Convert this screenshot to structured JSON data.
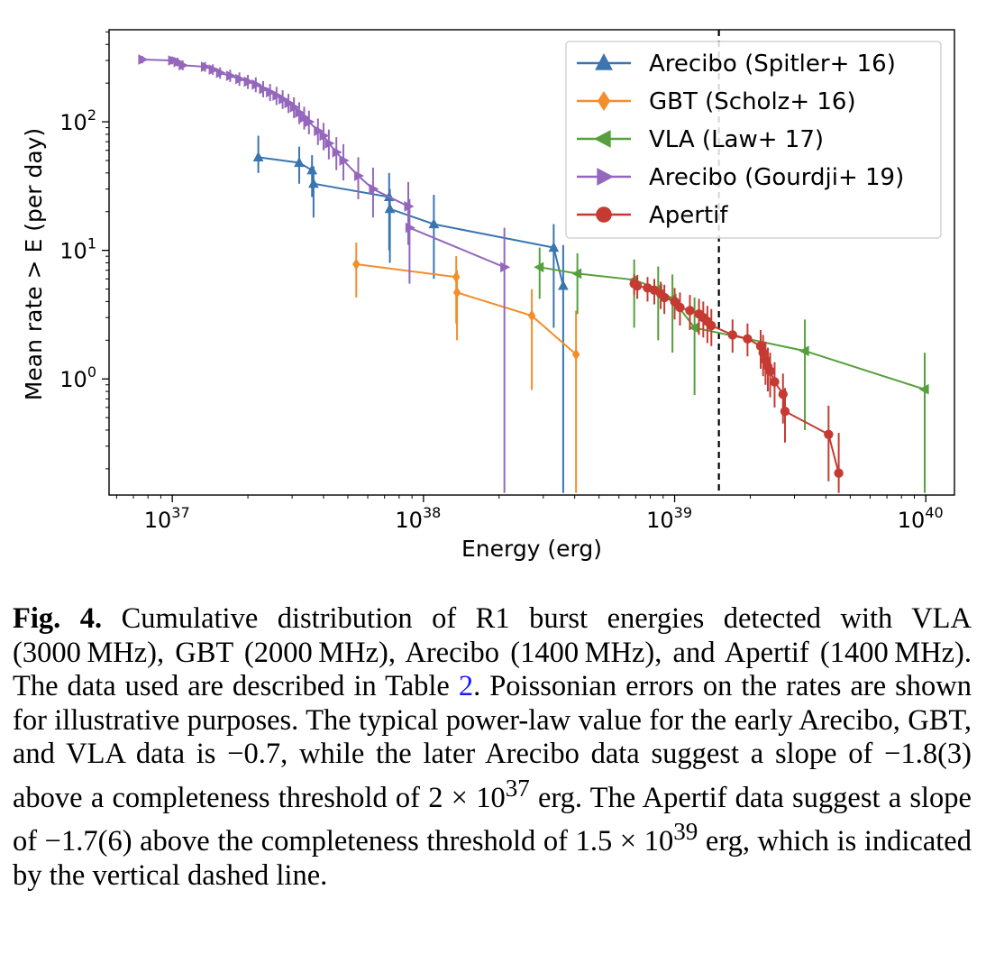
{
  "chart_data": {
    "type": "scatter",
    "title": "",
    "xlabel": "Energy (erg)",
    "ylabel": "Mean rate > E (per day)",
    "xscale": "log",
    "yscale": "log",
    "xlim": [
      5.6e+36,
      1.3e+40
    ],
    "ylim": [
      0.125,
      520
    ],
    "x_ticks": [
      {
        "value": 1e+37,
        "base": "10",
        "exp": "37"
      },
      {
        "value": 1e+38,
        "base": "10",
        "exp": "38"
      },
      {
        "value": 1e+39,
        "base": "10",
        "exp": "39"
      },
      {
        "value": 1e+40,
        "base": "10",
        "exp": "40"
      }
    ],
    "y_ticks": [
      {
        "value": 1,
        "base": "10",
        "exp": "0"
      },
      {
        "value": 10,
        "base": "10",
        "exp": "1"
      },
      {
        "value": 100,
        "base": "10",
        "exp": "2"
      }
    ],
    "grid": false,
    "legend_position": "top-right",
    "threshold_line": {
      "x": 1.5e+39,
      "style": "dashed",
      "color": "#000000"
    },
    "series": [
      {
        "name": "Arecibo (Spitler+ 16)",
        "color": "#3a75b0",
        "marker": "triangle-up",
        "points": [
          {
            "x": 2.2e+37,
            "y": 53,
            "lo": 40,
            "hi": 78
          },
          {
            "x": 3.2e+37,
            "y": 48,
            "lo": 33,
            "hi": 64
          },
          {
            "x": 3.6e+37,
            "y": 42,
            "lo": 26,
            "hi": 55
          },
          {
            "x": 3.65e+37,
            "y": 33,
            "lo": 18,
            "hi": 45
          },
          {
            "x": 7.3e+37,
            "y": 26,
            "lo": 10,
            "hi": 40
          },
          {
            "x": 7.35e+37,
            "y": 21,
            "lo": 8,
            "hi": 30
          },
          {
            "x": 1.1e+38,
            "y": 16,
            "lo": 6,
            "hi": 27
          },
          {
            "x": 3.3e+38,
            "y": 10.5,
            "lo": 2.5,
            "hi": 16
          },
          {
            "x": 3.6e+38,
            "y": 5.3,
            "lo": 0.13,
            "hi": 11
          }
        ]
      },
      {
        "name": "GBT (Scholz+ 16)",
        "color": "#f28e2b",
        "marker": "diamond",
        "points": [
          {
            "x": 5.4e+37,
            "y": 7.8,
            "lo": 4.3,
            "hi": 11.5
          },
          {
            "x": 1.35e+38,
            "y": 6.2,
            "lo": 2.7,
            "hi": 9
          },
          {
            "x": 1.36e+38,
            "y": 4.7,
            "lo": 2.0,
            "hi": 7
          },
          {
            "x": 2.7e+38,
            "y": 3.1,
            "lo": 0.82,
            "hi": 5
          },
          {
            "x": 4.05e+38,
            "y": 1.55,
            "lo": 0.13,
            "hi": 3.4
          }
        ]
      },
      {
        "name": "VLA (Law+ 17)",
        "color": "#55a03c",
        "marker": "triangle-left",
        "points": [
          {
            "x": 2.9e+38,
            "y": 7.4,
            "lo": 4.2,
            "hi": 10.5
          },
          {
            "x": 4.1e+38,
            "y": 6.6,
            "lo": 3.2,
            "hi": 9.5
          },
          {
            "x": 6.9e+38,
            "y": 5.9,
            "lo": 2.5,
            "hi": 8.5
          },
          {
            "x": 8.6e+38,
            "y": 5.0,
            "lo": 2.0,
            "hi": 7.5
          },
          {
            "x": 9.8e+38,
            "y": 4.2,
            "lo": 1.6,
            "hi": 6.5
          },
          {
            "x": 1.2e+39,
            "y": 2.5,
            "lo": 0.75,
            "hi": 4.3
          },
          {
            "x": 3.3e+39,
            "y": 1.65,
            "lo": 0.4,
            "hi": 2.9
          },
          {
            "x": 9.9e+39,
            "y": 0.83,
            "lo": 0.13,
            "hi": 1.6
          }
        ]
      },
      {
        "name": "Arecibo (Gourdji+ 19)",
        "color": "#9467bd",
        "marker": "triangle-right",
        "points": [
          {
            "x": 7.6e+36,
            "y": 305,
            "lo": 285,
            "hi": 325
          },
          {
            "x": 1e+37,
            "y": 300,
            "lo": 280,
            "hi": 322
          },
          {
            "x": 1.05e+37,
            "y": 292,
            "lo": 270,
            "hi": 315
          },
          {
            "x": 1.1e+37,
            "y": 275,
            "lo": 252,
            "hi": 300
          },
          {
            "x": 1.35e+37,
            "y": 268,
            "lo": 245,
            "hi": 292
          },
          {
            "x": 1.45e+37,
            "y": 255,
            "lo": 232,
            "hi": 280
          },
          {
            "x": 1.55e+37,
            "y": 240,
            "lo": 216,
            "hi": 265
          },
          {
            "x": 1.7e+37,
            "y": 228,
            "lo": 204,
            "hi": 254
          },
          {
            "x": 1.85e+37,
            "y": 215,
            "lo": 190,
            "hi": 242
          },
          {
            "x": 2e+37,
            "y": 205,
            "lo": 180,
            "hi": 232
          },
          {
            "x": 2.15e+37,
            "y": 195,
            "lo": 170,
            "hi": 222
          },
          {
            "x": 2.3e+37,
            "y": 180,
            "lo": 155,
            "hi": 207
          },
          {
            "x": 2.45e+37,
            "y": 170,
            "lo": 145,
            "hi": 197
          },
          {
            "x": 2.6e+37,
            "y": 160,
            "lo": 135,
            "hi": 187
          },
          {
            "x": 2.75e+37,
            "y": 150,
            "lo": 126,
            "hi": 176
          },
          {
            "x": 2.9e+37,
            "y": 140,
            "lo": 117,
            "hi": 165
          },
          {
            "x": 3.05e+37,
            "y": 130,
            "lo": 107,
            "hi": 155
          },
          {
            "x": 3.2e+37,
            "y": 118,
            "lo": 96,
            "hi": 142
          },
          {
            "x": 3.35e+37,
            "y": 108,
            "lo": 87,
            "hi": 131
          },
          {
            "x": 3.5e+37,
            "y": 100,
            "lo": 80,
            "hi": 122
          },
          {
            "x": 3.8e+37,
            "y": 85,
            "lo": 66,
            "hi": 106
          },
          {
            "x": 4e+37,
            "y": 78,
            "lo": 60,
            "hi": 98
          },
          {
            "x": 4.2e+37,
            "y": 68,
            "lo": 51,
            "hi": 87
          },
          {
            "x": 4.5e+37,
            "y": 58,
            "lo": 42,
            "hi": 76
          },
          {
            "x": 4.8e+37,
            "y": 50,
            "lo": 35,
            "hi": 67
          },
          {
            "x": 5.5e+37,
            "y": 38,
            "lo": 25,
            "hi": 53
          },
          {
            "x": 6.3e+37,
            "y": 30,
            "lo": 18,
            "hi": 44
          },
          {
            "x": 8.7e+37,
            "y": 22,
            "lo": 11,
            "hi": 34
          },
          {
            "x": 8.8e+37,
            "y": 15,
            "lo": 5.5,
            "hi": 25
          },
          {
            "x": 2.1e+38,
            "y": 7.4,
            "lo": 0.13,
            "hi": 15
          }
        ]
      },
      {
        "name": "Apertif",
        "color": "#c53a32",
        "marker": "circle",
        "points": [
          {
            "x": 6.9e+38,
            "y": 5.5,
            "lo": 4.5,
            "hi": 6.5
          },
          {
            "x": 7.1e+38,
            "y": 5.3,
            "lo": 4.2,
            "hi": 6.4
          },
          {
            "x": 7.8e+38,
            "y": 5.1,
            "lo": 4.0,
            "hi": 6.2
          },
          {
            "x": 8.3e+38,
            "y": 4.9,
            "lo": 3.8,
            "hi": 6.0
          },
          {
            "x": 8.8e+38,
            "y": 4.6,
            "lo": 3.5,
            "hi": 5.7
          },
          {
            "x": 9.1e+38,
            "y": 4.3,
            "lo": 3.2,
            "hi": 5.4
          },
          {
            "x": 1e+39,
            "y": 4.0,
            "lo": 2.9,
            "hi": 5.1
          },
          {
            "x": 1.05e+39,
            "y": 3.6,
            "lo": 2.6,
            "hi": 4.7
          },
          {
            "x": 1.15e+39,
            "y": 3.4,
            "lo": 2.4,
            "hi": 4.5
          },
          {
            "x": 1.25e+39,
            "y": 3.2,
            "lo": 2.2,
            "hi": 4.2
          },
          {
            "x": 1.3e+39,
            "y": 3.0,
            "lo": 2.1,
            "hi": 4.0
          },
          {
            "x": 1.35e+39,
            "y": 2.8,
            "lo": 1.9,
            "hi": 3.7
          },
          {
            "x": 1.4e+39,
            "y": 2.6,
            "lo": 1.8,
            "hi": 3.5
          },
          {
            "x": 1.7e+39,
            "y": 2.2,
            "lo": 1.6,
            "hi": 2.9
          },
          {
            "x": 1.95e+39,
            "y": 2.05,
            "lo": 1.5,
            "hi": 2.7
          },
          {
            "x": 2.2e+39,
            "y": 1.8,
            "lo": 1.2,
            "hi": 2.4
          },
          {
            "x": 2.25e+39,
            "y": 1.6,
            "lo": 1.05,
            "hi": 2.2
          },
          {
            "x": 2.3e+39,
            "y": 1.4,
            "lo": 0.9,
            "hi": 1.95
          },
          {
            "x": 2.35e+39,
            "y": 1.25,
            "lo": 0.8,
            "hi": 1.75
          },
          {
            "x": 2.4e+39,
            "y": 1.15,
            "lo": 0.72,
            "hi": 1.6
          },
          {
            "x": 2.5e+39,
            "y": 0.95,
            "lo": 0.6,
            "hi": 1.35
          },
          {
            "x": 2.7e+39,
            "y": 0.76,
            "lo": 0.45,
            "hi": 1.1
          },
          {
            "x": 2.75e+39,
            "y": 0.56,
            "lo": 0.32,
            "hi": 0.85
          },
          {
            "x": 4.1e+39,
            "y": 0.37,
            "lo": 0.16,
            "hi": 0.62
          },
          {
            "x": 4.5e+39,
            "y": 0.185,
            "lo": 0.13,
            "hi": 0.38
          }
        ]
      }
    ]
  },
  "caption": {
    "fig_label": "Fig. 4.",
    "seg1": " Cumulative distribution of R1 burst energies detected with VLA (3000 MHz), GBT (2000 MHz), Arecibo (1400 MHz), and Apertif (1400 MHz). The data used are described in Table ",
    "table_ref": "2",
    "seg2": ". Poissonian errors on the rates are shown for illustrative purposes. The typical power-law value for the early Arecibo, GBT, and VLA data is −0.7, while the later Arecibo data suggest a slope of −1.8(3) above a completeness thresh­old of 2 × 10",
    "exp1": "37",
    "seg3": " erg. The Apertif data suggest a slope of −1.7(6) above the completeness threshold of 1.5 × 10",
    "exp2": "39",
    "seg4": " erg, which is indicated by the vertical dashed line."
  }
}
